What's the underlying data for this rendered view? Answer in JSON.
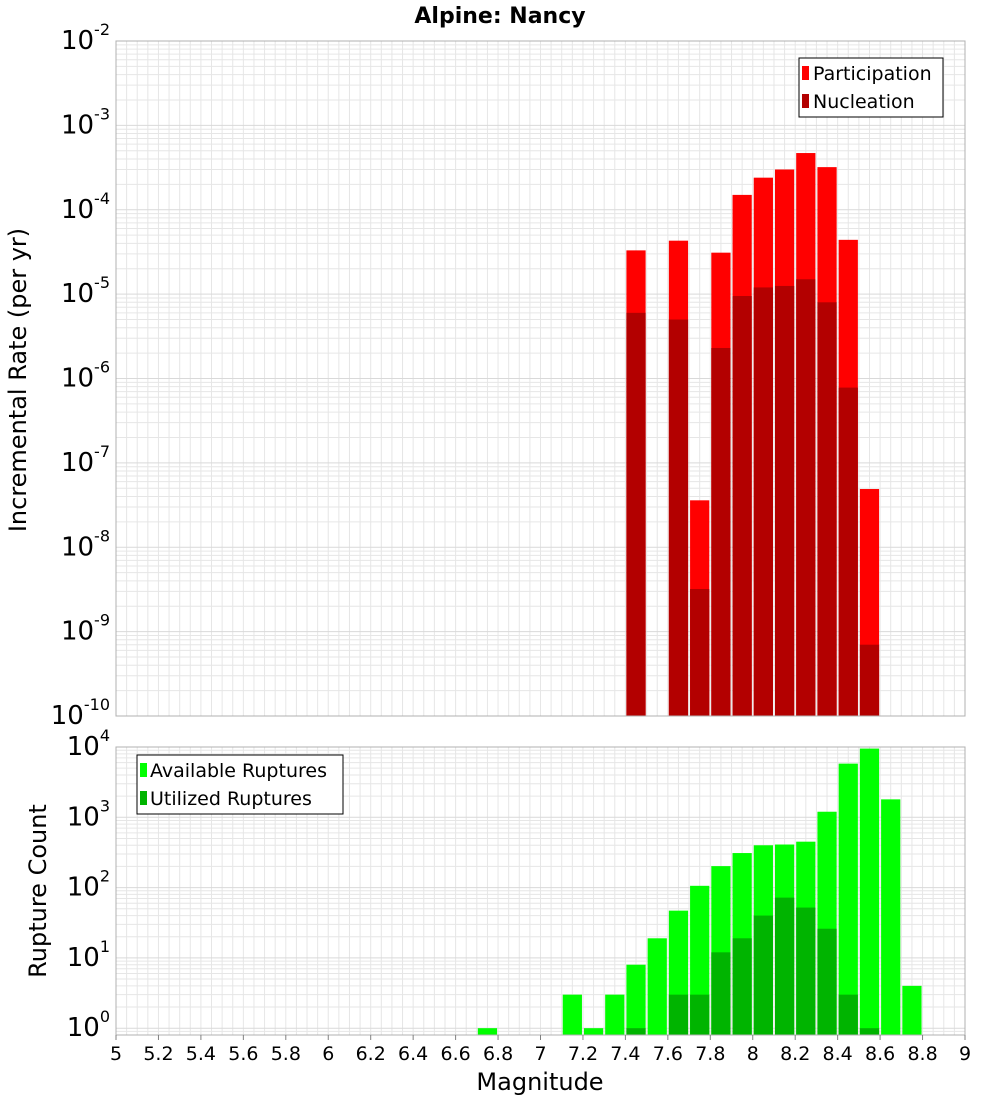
{
  "title": "Alpine: Nancy",
  "xlabel": "Magnitude",
  "xlim": [
    5,
    9
  ],
  "xticks": [
    "5",
    "5.2",
    "5.4",
    "5.6",
    "5.8",
    "6",
    "6.2",
    "6.4",
    "6.6",
    "6.8",
    "7",
    "7.2",
    "7.4",
    "7.6",
    "7.8",
    "8",
    "8.2",
    "8.4",
    "8.6",
    "8.8",
    "9"
  ],
  "colors": {
    "participation": "#ff0000",
    "nucleation": "#b30000",
    "available": "#00ff00",
    "utilized": "#00b400",
    "grid": "#e6e6e6",
    "frame": "#b0b0b0"
  },
  "chart_data": [
    {
      "type": "bar",
      "title": "Alpine: Nancy",
      "ylabel": "Incremental Rate (per yr)",
      "yscale": "log",
      "ylim": [
        1e-10,
        0.01
      ],
      "ytick_exponents": [
        "-10",
        "-9",
        "-8",
        "-7",
        "-6",
        "-5",
        "-4",
        "-3",
        "-2"
      ],
      "legend": {
        "placement": "top-right",
        "entries": [
          "Participation",
          "Nucleation"
        ]
      },
      "x": [
        7.45,
        7.55,
        7.65,
        7.75,
        7.85,
        7.95,
        8.05,
        8.15,
        8.25,
        8.35,
        8.45,
        8.55
      ],
      "series": [
        {
          "name": "Participation",
          "values": [
            3.3e-05,
            null,
            4.3e-05,
            3.6e-08,
            3.1e-05,
            0.00015,
            0.00024,
            0.0003,
            0.00047,
            0.00032,
            4.4e-05,
            4.9e-08
          ]
        },
        {
          "name": "Nucleation",
          "values": [
            6e-06,
            null,
            5e-06,
            3.2e-09,
            2.3e-06,
            9.5e-06,
            1.2e-05,
            1.25e-05,
            1.5e-05,
            8e-06,
            7.8e-07,
            7e-10
          ]
        }
      ]
    },
    {
      "type": "bar",
      "ylabel": "Rupture Count",
      "xlabel": "Magnitude",
      "yscale": "log",
      "ylim": [
        0.8,
        10000
      ],
      "ytick_exponents": [
        "0",
        "1",
        "2",
        "3",
        "4"
      ],
      "legend": {
        "placement": "top-left",
        "entries": [
          "Available Ruptures",
          "Utilized Ruptures"
        ]
      },
      "x": [
        6.75,
        7.15,
        7.25,
        7.35,
        7.45,
        7.55,
        7.65,
        7.75,
        7.85,
        7.95,
        8.05,
        8.15,
        8.25,
        8.35,
        8.45,
        8.55,
        8.65,
        8.75
      ],
      "series": [
        {
          "name": "Available Ruptures",
          "values": [
            1,
            3,
            1,
            3,
            8,
            19,
            47,
            106,
            202,
            310,
            400,
            410,
            450,
            1200,
            5800,
            9500,
            1800,
            4
          ]
        },
        {
          "name": "Utilized Ruptures",
          "values": [
            null,
            null,
            null,
            null,
            1,
            null,
            3,
            3,
            12,
            19,
            40,
            72,
            52,
            26,
            3,
            1,
            null,
            null
          ]
        }
      ]
    }
  ]
}
